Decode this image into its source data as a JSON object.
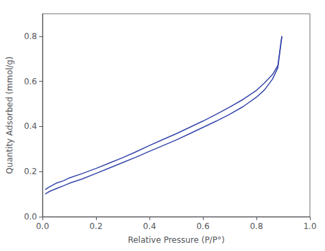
{
  "chart_data": {
    "type": "line",
    "xlabel": "Relative Pressure (P/P°)",
    "ylabel": "Quantity Adsorbed (mmol/g)",
    "xlim": [
      0.0,
      1.0
    ],
    "ylim": [
      0.0,
      0.9
    ],
    "xticks": [
      {
        "value": 0.0,
        "label": "0.0"
      },
      0.2,
      0.4,
      0.6,
      0.8,
      {
        "value": 1.0,
        "label": "1.0"
      }
    ],
    "yticks": [
      {
        "value": 0.0,
        "label": "0.0"
      },
      0.2,
      0.4,
      0.6,
      0.8
    ],
    "grid": false,
    "series": [
      {
        "color": "#3344aa",
        "x": [
          0.01,
          0.02,
          0.03,
          0.05,
          0.08,
          0.1,
          0.15,
          0.2,
          0.25,
          0.3,
          0.35,
          0.4,
          0.45,
          0.5,
          0.55,
          0.6,
          0.65,
          0.7,
          0.75,
          0.8,
          0.83,
          0.86,
          0.88,
          0.895
        ],
        "values": [
          0.1,
          0.108,
          0.114,
          0.124,
          0.138,
          0.148,
          0.168,
          0.192,
          0.216,
          0.24,
          0.264,
          0.29,
          0.315,
          0.34,
          0.368,
          0.396,
          0.424,
          0.454,
          0.488,
          0.53,
          0.562,
          0.61,
          0.66,
          0.8
        ]
      },
      {
        "color": "#3344aa",
        "x": [
          0.895,
          0.88,
          0.86,
          0.83,
          0.8,
          0.75,
          0.7,
          0.65,
          0.6,
          0.55,
          0.5,
          0.45,
          0.4,
          0.35,
          0.3,
          0.25,
          0.2,
          0.15,
          0.1,
          0.08,
          0.05,
          0.03,
          0.02,
          0.01
        ],
        "values": [
          0.8,
          0.67,
          0.63,
          0.593,
          0.56,
          0.52,
          0.486,
          0.454,
          0.424,
          0.396,
          0.368,
          0.342,
          0.316,
          0.288,
          0.262,
          0.238,
          0.214,
          0.192,
          0.172,
          0.16,
          0.148,
          0.135,
          0.128,
          0.12
        ]
      }
    ]
  }
}
